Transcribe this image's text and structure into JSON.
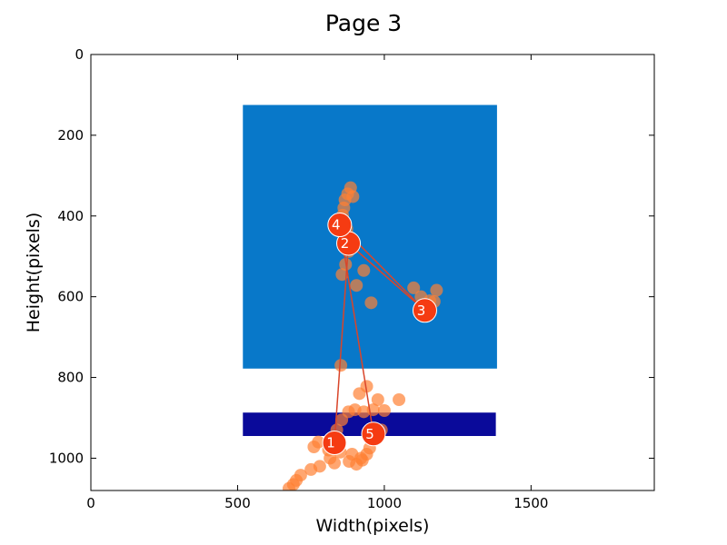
{
  "chart_data": {
    "type": "scatter",
    "title": "Page 3",
    "xlabel": "Width(pixels)",
    "ylabel": "Height(pixels)",
    "xlim": [
      0,
      1920
    ],
    "ylim": [
      1080,
      0
    ],
    "x_ticks": [
      0,
      500,
      1000,
      1500
    ],
    "y_ticks": [
      0,
      200,
      400,
      600,
      800,
      1000
    ],
    "grid": false,
    "regions": [
      {
        "x0": 518,
        "x1": 1384,
        "y0": 125,
        "y1": 778,
        "color": "#0878c9"
      },
      {
        "x0": 518,
        "x1": 1380,
        "y0": 887,
        "y1": 945,
        "color": "#0a0a9a"
      }
    ],
    "gaze_color": "#ff8033",
    "gaze_points": [
      [
        885,
        330
      ],
      [
        893,
        352
      ],
      [
        875,
        345
      ],
      [
        866,
        360
      ],
      [
        862,
        380
      ],
      [
        858,
        398
      ],
      [
        872,
        432
      ],
      [
        882,
        452
      ],
      [
        878,
        488
      ],
      [
        868,
        520
      ],
      [
        856,
        545
      ],
      [
        930,
        535
      ],
      [
        905,
        572
      ],
      [
        955,
        615
      ],
      [
        1100,
        578
      ],
      [
        1125,
        600
      ],
      [
        1155,
        610
      ],
      [
        1178,
        584
      ],
      [
        1170,
        612
      ],
      [
        1120,
        640
      ],
      [
        852,
        770
      ],
      [
        940,
        822
      ],
      [
        978,
        855
      ],
      [
        1050,
        855
      ],
      [
        915,
        840
      ],
      [
        900,
        880
      ],
      [
        878,
        885
      ],
      [
        855,
        905
      ],
      [
        838,
        930
      ],
      [
        930,
        885
      ],
      [
        962,
        880
      ],
      [
        1000,
        882
      ],
      [
        775,
        960
      ],
      [
        760,
        972
      ],
      [
        810,
        980
      ],
      [
        850,
        985
      ],
      [
        890,
        990
      ],
      [
        940,
        990
      ],
      [
        925,
        1005
      ],
      [
        905,
        1015
      ],
      [
        880,
        1008
      ],
      [
        830,
        1012
      ],
      [
        780,
        1020
      ],
      [
        750,
        1028
      ],
      [
        715,
        1042
      ],
      [
        700,
        1055
      ],
      [
        690,
        1065
      ],
      [
        675,
        1075
      ],
      [
        950,
        975
      ],
      [
        920,
        1000
      ],
      [
        990,
        930
      ],
      [
        815,
        1000
      ]
    ],
    "fixation_color": "#f53b12",
    "scanpath_color": "#d9452a",
    "fixations": [
      {
        "label": "1",
        "x": 830,
        "y": 962
      },
      {
        "label": "2",
        "x": 878,
        "y": 468
      },
      {
        "label": "3",
        "x": 1138,
        "y": 634
      },
      {
        "label": "4",
        "x": 848,
        "y": 422
      },
      {
        "label": "5",
        "x": 963,
        "y": 940
      }
    ]
  }
}
